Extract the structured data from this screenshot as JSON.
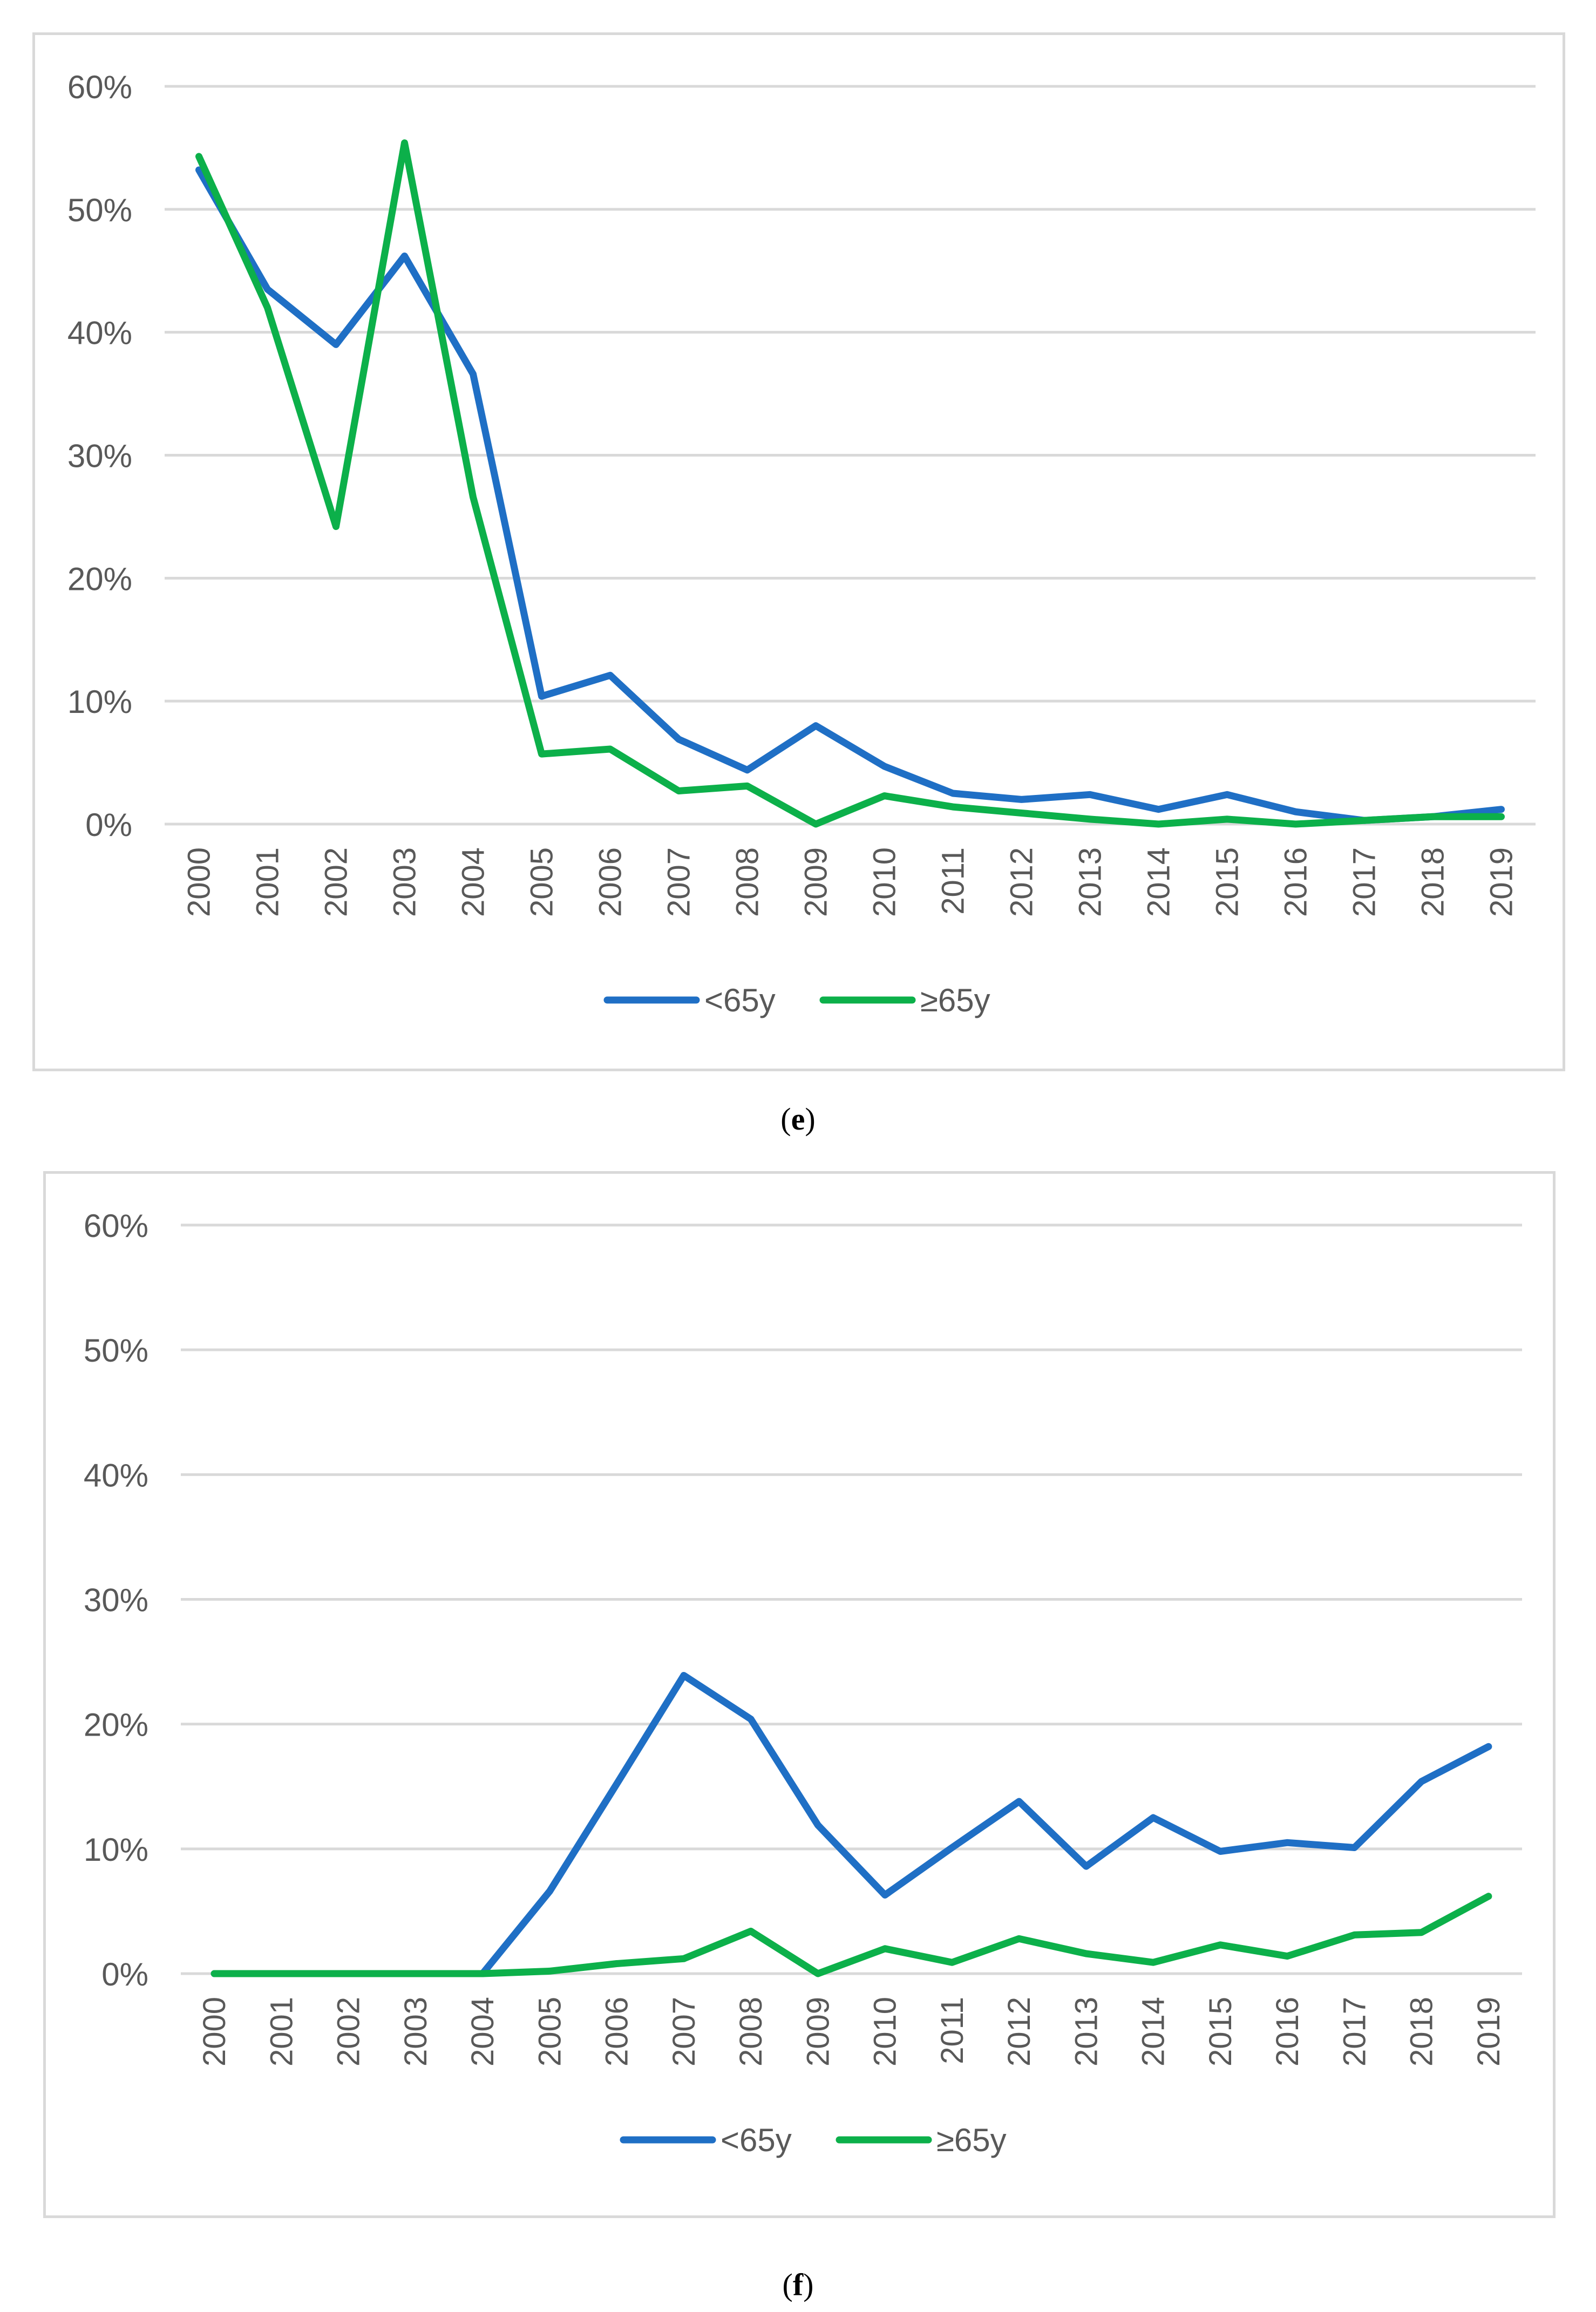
{
  "chart_data": [
    {
      "type": "line",
      "panel": "e",
      "title": "",
      "xlabel": "",
      "ylabel": "",
      "categories": [
        "2000",
        "2001",
        "2002",
        "2003",
        "2004",
        "2005",
        "2006",
        "2007",
        "2008",
        "2009",
        "2010",
        "2011",
        "2012",
        "2013",
        "2014",
        "2015",
        "2016",
        "2017",
        "2018",
        "2019"
      ],
      "ylim": [
        0,
        60
      ],
      "yticks": [
        "0%",
        "10%",
        "20%",
        "30%",
        "40%",
        "50%",
        "60%"
      ],
      "grid": true,
      "legend_position": "bottom",
      "series": [
        {
          "name": "<65y",
          "color": "#1f6fc5",
          "values": [
            53.2,
            43.5,
            39.0,
            46.2,
            36.6,
            10.4,
            12.1,
            6.9,
            4.4,
            8.0,
            4.7,
            2.5,
            2.0,
            2.4,
            1.2,
            2.4,
            1.0,
            0.3,
            0.6,
            1.2
          ]
        },
        {
          "name": "≥65y",
          "color": "#0cb04a",
          "values": [
            54.3,
            42.0,
            24.2,
            55.4,
            26.6,
            5.7,
            6.1,
            2.7,
            3.1,
            0.0,
            2.3,
            1.4,
            0.9,
            0.4,
            0.0,
            0.4,
            0.0,
            0.3,
            0.6,
            0.6
          ]
        }
      ]
    },
    {
      "type": "line",
      "panel": "f",
      "title": "",
      "xlabel": "",
      "ylabel": "",
      "categories": [
        "2000",
        "2001",
        "2002",
        "2003",
        "2004",
        "2005",
        "2006",
        "2007",
        "2008",
        "2009",
        "2010",
        "2011",
        "2012",
        "2013",
        "2014",
        "2015",
        "2016",
        "2017",
        "2018",
        "2019"
      ],
      "ylim": [
        0,
        60
      ],
      "yticks": [
        "0%",
        "10%",
        "20%",
        "30%",
        "40%",
        "50%",
        "60%"
      ],
      "grid": true,
      "legend_position": "bottom",
      "series": [
        {
          "name": "<65y",
          "color": "#1f6fc5",
          "values": [
            0,
            0,
            0,
            0,
            0,
            6.6,
            15.2,
            23.9,
            20.4,
            11.9,
            6.3,
            10.1,
            13.8,
            8.6,
            12.5,
            9.8,
            10.5,
            10.1,
            15.4,
            18.2
          ]
        },
        {
          "name": "≥65y",
          "color": "#0cb04a",
          "values": [
            0,
            0,
            0,
            0,
            0,
            0.2,
            0.8,
            1.2,
            3.4,
            0.0,
            2.0,
            0.9,
            2.8,
            1.6,
            0.9,
            2.3,
            1.4,
            3.1,
            3.3,
            6.2
          ]
        }
      ]
    }
  ],
  "captions": {
    "e": {
      "open": "(",
      "letter": "e",
      "close": ")"
    },
    "f": {
      "open": "(",
      "letter": "f",
      "close": ")"
    }
  }
}
